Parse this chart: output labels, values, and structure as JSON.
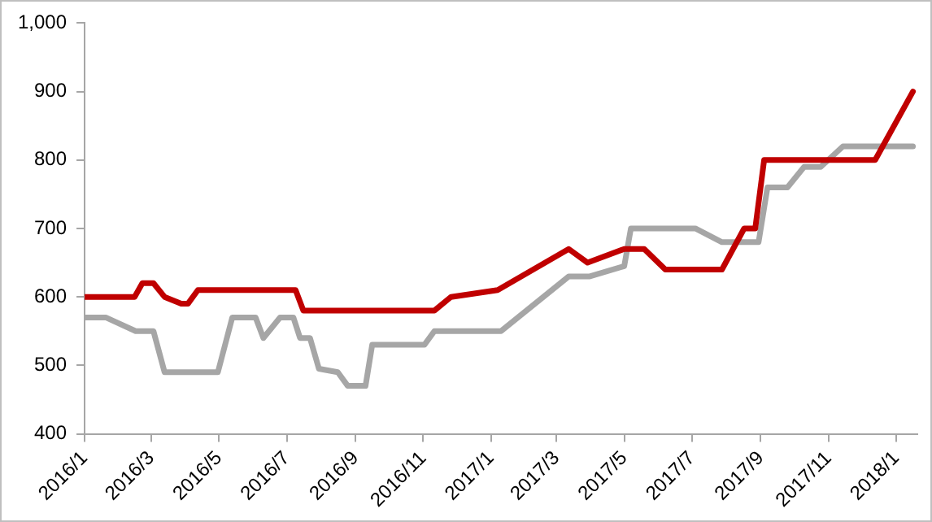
{
  "chart_data": {
    "type": "line",
    "xlim": [
      "2016-01-01",
      "2018-01-20"
    ],
    "xticks": [
      {
        "value": "2016-01-01",
        "label": "2016/1"
      },
      {
        "value": "2016-03-01",
        "label": "2016/3"
      },
      {
        "value": "2016-05-01",
        "label": "2016/5"
      },
      {
        "value": "2016-07-01",
        "label": "2016/7"
      },
      {
        "value": "2016-09-01",
        "label": "2016/9"
      },
      {
        "value": "2016-11-01",
        "label": "2016/11"
      },
      {
        "value": "2017-01-01",
        "label": "2017/1"
      },
      {
        "value": "2017-03-01",
        "label": "2017/3"
      },
      {
        "value": "2017-05-01",
        "label": "2017/5"
      },
      {
        "value": "2017-07-01",
        "label": "2017/7"
      },
      {
        "value": "2017-09-01",
        "label": "2017/9"
      },
      {
        "value": "2017-11-01",
        "label": "2017/11"
      },
      {
        "value": "2018-01-01",
        "label": "2018/1"
      }
    ],
    "ylim": [
      400,
      1000
    ],
    "yticks": [
      400,
      500,
      600,
      700,
      800,
      900,
      {
        "value": 1000,
        "label": "1,000"
      }
    ],
    "grid": false,
    "legend": false,
    "marker": "none",
    "line_style": "solid",
    "series": [
      {
        "color": "#c00000",
        "x": [
          "2016-01-01",
          "2016-02-15",
          "2016-02-22",
          "2016-03-03",
          "2016-03-13",
          "2016-03-28",
          "2016-04-03",
          "2016-04-12",
          "2016-07-09",
          "2016-07-16",
          "2016-11-11",
          "2016-11-26",
          "2017-01-07",
          "2017-03-12",
          "2017-03-29",
          "2017-05-01",
          "2017-05-19",
          "2017-06-07",
          "2017-07-28",
          "2017-08-17",
          "2017-08-27",
          "2017-09-04",
          "2017-12-13",
          "2018-01-16"
        ],
        "values": [
          600,
          600,
          620,
          620,
          600,
          590,
          590,
          610,
          610,
          580,
          580,
          600,
          610,
          670,
          650,
          670,
          670,
          640,
          640,
          700,
          700,
          800,
          800,
          900
        ]
      },
      {
        "color": "#a6a6a6",
        "x": [
          "2016-01-01",
          "2016-01-20",
          "2016-02-16",
          "2016-03-03",
          "2016-03-13",
          "2016-04-30",
          "2016-05-13",
          "2016-06-03",
          "2016-06-10",
          "2016-06-25",
          "2016-07-07",
          "2016-07-13",
          "2016-07-22",
          "2016-07-30",
          "2016-08-16",
          "2016-08-25",
          "2016-09-10",
          "2016-09-16",
          "2016-11-02",
          "2016-11-11",
          "2017-01-10",
          "2017-03-12",
          "2017-03-31",
          "2017-05-01",
          "2017-05-07",
          "2017-07-04",
          "2017-07-28",
          "2017-08-30",
          "2017-09-07",
          "2017-09-25",
          "2017-10-10",
          "2017-10-25",
          "2017-11-14",
          "2018-01-16"
        ],
        "values": [
          570,
          570,
          550,
          550,
          490,
          490,
          570,
          570,
          540,
          570,
          570,
          540,
          540,
          495,
          490,
          470,
          470,
          530,
          530,
          550,
          550,
          630,
          630,
          645,
          700,
          700,
          680,
          680,
          760,
          760,
          790,
          790,
          820,
          820
        ]
      }
    ]
  }
}
